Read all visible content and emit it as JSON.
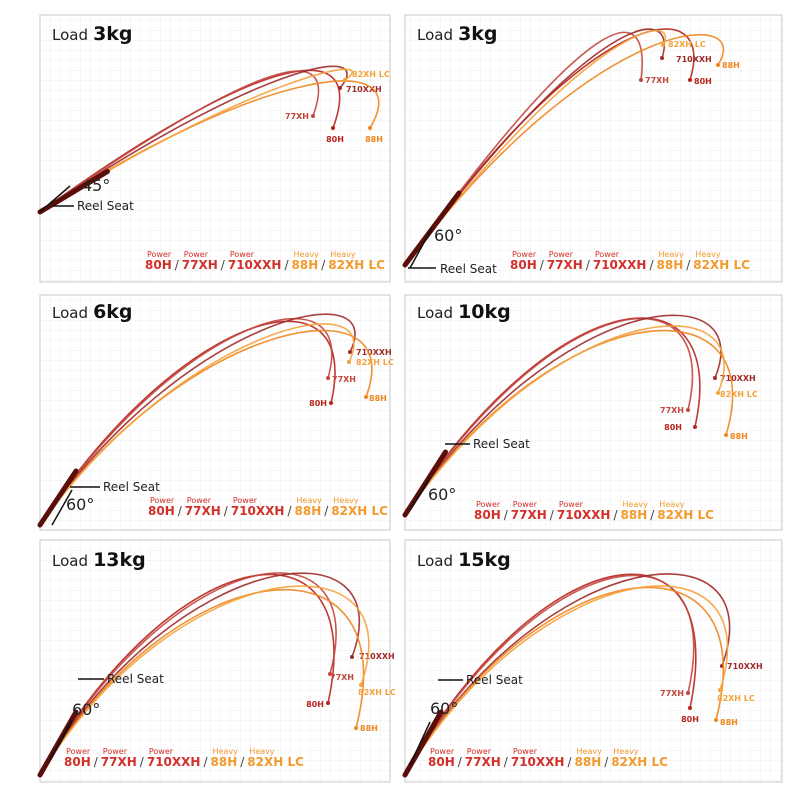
{
  "legend_separator": "/",
  "panels": [
    {
      "load_label": "Load",
      "load": "3kg",
      "angle": "45°",
      "reel_seat": "Reel Seat",
      "curve_labels": [
        "80H",
        "77XH",
        "710XXH",
        "88H",
        "82XH LC"
      ],
      "legend": [
        {
          "category": "Power",
          "model": "80H"
        },
        {
          "category": "Power",
          "model": "77XH"
        },
        {
          "category": "Power",
          "model": "710XXH"
        },
        {
          "category": "Heavy",
          "model": "88H"
        },
        {
          "category": "Heavy",
          "model": "82XH LC"
        }
      ]
    },
    {
      "load_label": "Load",
      "load": "3kg",
      "angle": "60°",
      "reel_seat": "Reel Seat",
      "curve_labels": [
        "80H",
        "77XH",
        "710XXH",
        "88H",
        "82XH LC"
      ],
      "legend": [
        {
          "category": "Power",
          "model": "80H"
        },
        {
          "category": "Power",
          "model": "77XH"
        },
        {
          "category": "Power",
          "model": "710XXH"
        },
        {
          "category": "Heavy",
          "model": "88H"
        },
        {
          "category": "Heavy",
          "model": "82XH LC"
        }
      ]
    },
    {
      "load_label": "Load",
      "load": "6kg",
      "angle": "60°",
      "reel_seat": "Reel Seat",
      "curve_labels": [
        "80H",
        "77XH",
        "710XXH",
        "88H",
        "82XH LC"
      ],
      "legend": [
        {
          "category": "Power",
          "model": "80H"
        },
        {
          "category": "Power",
          "model": "77XH"
        },
        {
          "category": "Power",
          "model": "710XXH"
        },
        {
          "category": "Heavy",
          "model": "88H"
        },
        {
          "category": "Heavy",
          "model": "82XH LC"
        }
      ]
    },
    {
      "load_label": "Load",
      "load": "10kg",
      "angle": "60°",
      "reel_seat": "Reel Seat",
      "curve_labels": [
        "80H",
        "77XH",
        "710XXH",
        "88H",
        "82XH LC"
      ],
      "legend": [
        {
          "category": "Power",
          "model": "80H"
        },
        {
          "category": "Power",
          "model": "77XH"
        },
        {
          "category": "Power",
          "model": "710XXH"
        },
        {
          "category": "Heavy",
          "model": "88H"
        },
        {
          "category": "Heavy",
          "model": "82XH LC"
        }
      ]
    },
    {
      "load_label": "Load",
      "load": "13kg",
      "angle": "60°",
      "reel_seat": "Reel Seat",
      "curve_labels": [
        "80H",
        "77XH",
        "710XXH",
        "88H",
        "82XH LC"
      ],
      "legend": [
        {
          "category": "Power",
          "model": "80H"
        },
        {
          "category": "Power",
          "model": "77XH"
        },
        {
          "category": "Power",
          "model": "710XXH"
        },
        {
          "category": "Heavy",
          "model": "88H"
        },
        {
          "category": "Heavy",
          "model": "82XH LC"
        }
      ]
    },
    {
      "load_label": "Load",
      "load": "15kg",
      "angle": "60°",
      "reel_seat": "Reel Seat",
      "curve_labels": [
        "80H",
        "77XH",
        "710XXH",
        "88H",
        "82XH LC"
      ],
      "legend": [
        {
          "category": "Power",
          "model": "80H"
        },
        {
          "category": "Power",
          "model": "77XH"
        },
        {
          "category": "Power",
          "model": "710XXH"
        },
        {
          "category": "Heavy",
          "model": "88H"
        },
        {
          "category": "Heavy",
          "model": "82XH LC"
        }
      ]
    }
  ]
}
